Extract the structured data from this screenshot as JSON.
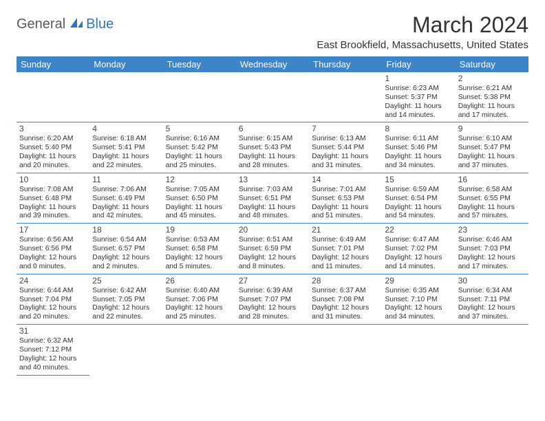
{
  "logo": {
    "text1": "General",
    "text2": "Blue"
  },
  "title": "March 2024",
  "subtitle": "East Brookfield, Massachusetts, United States",
  "colors": {
    "header_bg": "#3d85c6",
    "header_fg": "#ffffff",
    "cell_border": "#3d85c6",
    "logo_gray": "#58595b",
    "logo_blue": "#2e75c0",
    "text": "#333333"
  },
  "day_headers": [
    "Sunday",
    "Monday",
    "Tuesday",
    "Wednesday",
    "Thursday",
    "Friday",
    "Saturday"
  ],
  "weeks": [
    [
      null,
      null,
      null,
      null,
      null,
      {
        "n": "1",
        "sr": "6:23 AM",
        "ss": "5:37 PM",
        "dh": "11",
        "dm": "14"
      },
      {
        "n": "2",
        "sr": "6:21 AM",
        "ss": "5:38 PM",
        "dh": "11",
        "dm": "17"
      }
    ],
    [
      {
        "n": "3",
        "sr": "6:20 AM",
        "ss": "5:40 PM",
        "dh": "11",
        "dm": "20"
      },
      {
        "n": "4",
        "sr": "6:18 AM",
        "ss": "5:41 PM",
        "dh": "11",
        "dm": "22"
      },
      {
        "n": "5",
        "sr": "6:16 AM",
        "ss": "5:42 PM",
        "dh": "11",
        "dm": "25"
      },
      {
        "n": "6",
        "sr": "6:15 AM",
        "ss": "5:43 PM",
        "dh": "11",
        "dm": "28"
      },
      {
        "n": "7",
        "sr": "6:13 AM",
        "ss": "5:44 PM",
        "dh": "11",
        "dm": "31"
      },
      {
        "n": "8",
        "sr": "6:11 AM",
        "ss": "5:46 PM",
        "dh": "11",
        "dm": "34"
      },
      {
        "n": "9",
        "sr": "6:10 AM",
        "ss": "5:47 PM",
        "dh": "11",
        "dm": "37"
      }
    ],
    [
      {
        "n": "10",
        "sr": "7:08 AM",
        "ss": "6:48 PM",
        "dh": "11",
        "dm": "39"
      },
      {
        "n": "11",
        "sr": "7:06 AM",
        "ss": "6:49 PM",
        "dh": "11",
        "dm": "42"
      },
      {
        "n": "12",
        "sr": "7:05 AM",
        "ss": "6:50 PM",
        "dh": "11",
        "dm": "45"
      },
      {
        "n": "13",
        "sr": "7:03 AM",
        "ss": "6:51 PM",
        "dh": "11",
        "dm": "48"
      },
      {
        "n": "14",
        "sr": "7:01 AM",
        "ss": "6:53 PM",
        "dh": "11",
        "dm": "51"
      },
      {
        "n": "15",
        "sr": "6:59 AM",
        "ss": "6:54 PM",
        "dh": "11",
        "dm": "54"
      },
      {
        "n": "16",
        "sr": "6:58 AM",
        "ss": "6:55 PM",
        "dh": "11",
        "dm": "57"
      }
    ],
    [
      {
        "n": "17",
        "sr": "6:56 AM",
        "ss": "6:56 PM",
        "dh": "12",
        "dm": "0"
      },
      {
        "n": "18",
        "sr": "6:54 AM",
        "ss": "6:57 PM",
        "dh": "12",
        "dm": "2"
      },
      {
        "n": "19",
        "sr": "6:53 AM",
        "ss": "6:58 PM",
        "dh": "12",
        "dm": "5"
      },
      {
        "n": "20",
        "sr": "6:51 AM",
        "ss": "6:59 PM",
        "dh": "12",
        "dm": "8"
      },
      {
        "n": "21",
        "sr": "6:49 AM",
        "ss": "7:01 PM",
        "dh": "12",
        "dm": "11"
      },
      {
        "n": "22",
        "sr": "6:47 AM",
        "ss": "7:02 PM",
        "dh": "12",
        "dm": "14"
      },
      {
        "n": "23",
        "sr": "6:46 AM",
        "ss": "7:03 PM",
        "dh": "12",
        "dm": "17"
      }
    ],
    [
      {
        "n": "24",
        "sr": "6:44 AM",
        "ss": "7:04 PM",
        "dh": "12",
        "dm": "20"
      },
      {
        "n": "25",
        "sr": "6:42 AM",
        "ss": "7:05 PM",
        "dh": "12",
        "dm": "22"
      },
      {
        "n": "26",
        "sr": "6:40 AM",
        "ss": "7:06 PM",
        "dh": "12",
        "dm": "25"
      },
      {
        "n": "27",
        "sr": "6:39 AM",
        "ss": "7:07 PM",
        "dh": "12",
        "dm": "28"
      },
      {
        "n": "28",
        "sr": "6:37 AM",
        "ss": "7:08 PM",
        "dh": "12",
        "dm": "31"
      },
      {
        "n": "29",
        "sr": "6:35 AM",
        "ss": "7:10 PM",
        "dh": "12",
        "dm": "34"
      },
      {
        "n": "30",
        "sr": "6:34 AM",
        "ss": "7:11 PM",
        "dh": "12",
        "dm": "37"
      }
    ],
    [
      {
        "n": "31",
        "sr": "6:32 AM",
        "ss": "7:12 PM",
        "dh": "12",
        "dm": "40"
      },
      null,
      null,
      null,
      null,
      null,
      null
    ]
  ]
}
